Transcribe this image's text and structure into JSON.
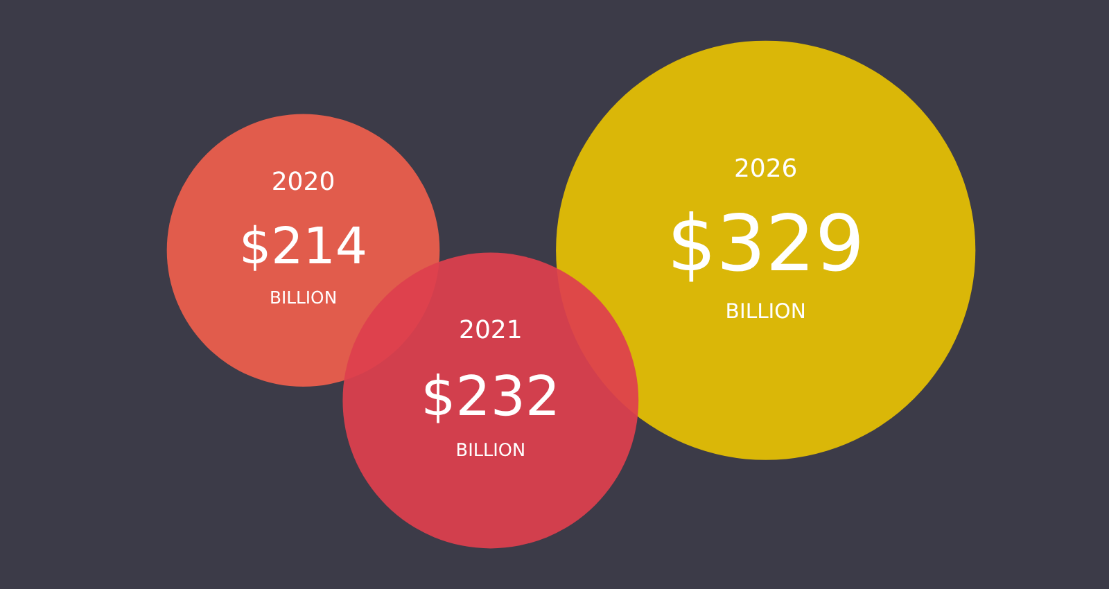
{
  "chart_data": {
    "type": "other",
    "categories": [
      "2020",
      "2021",
      "2026"
    ],
    "values": [
      214,
      232,
      329
    ],
    "value_labels": [
      "$214",
      "$232",
      "$329"
    ],
    "colors": [
      "#ee5f4c",
      "#de404e",
      "#e6c103"
    ],
    "annotations": [
      "BILLION",
      "BILLION",
      "BILLION"
    ]
  }
}
